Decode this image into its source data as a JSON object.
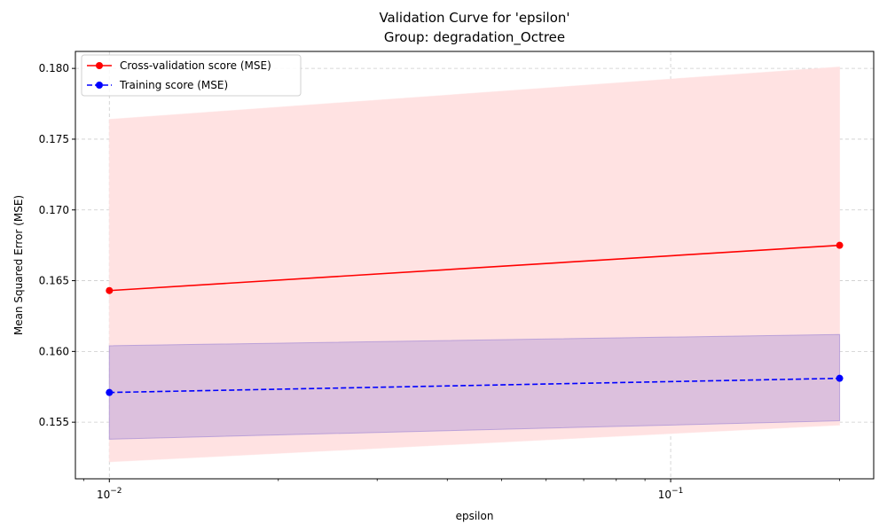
{
  "chart_data": {
    "type": "line",
    "title": "Validation Curve for 'epsilon'",
    "subtitle": "Group: degradation_Octree",
    "xlabel": "epsilon",
    "ylabel": "Mean Squared Error (MSE)",
    "x_scale": "log",
    "xlim": [
      0.0087,
      0.23
    ],
    "ylim": [
      0.151,
      0.1812
    ],
    "x_ticks": [
      {
        "value": 0.01,
        "base": "10",
        "exp": "−2"
      },
      {
        "value": 0.1,
        "base": "10",
        "exp": "−1"
      }
    ],
    "y_ticks": [
      {
        "value": 0.155,
        "label": "0.155"
      },
      {
        "value": 0.16,
        "label": "0.160"
      },
      {
        "value": 0.165,
        "label": "0.165"
      },
      {
        "value": 0.17,
        "label": "0.170"
      },
      {
        "value": 0.175,
        "label": "0.175"
      },
      {
        "value": 0.18,
        "label": "0.180"
      }
    ],
    "grid": true,
    "legend_position": "top-left",
    "series": [
      {
        "name": "Cross-validation score (MSE)",
        "color": "#ff0000",
        "dash": "solid",
        "band_color": "#ffe2e2",
        "x": [
          0.01,
          0.2
        ],
        "y": [
          0.1643,
          0.1675
        ],
        "lower": [
          0.1522,
          0.1548
        ],
        "upper": [
          0.1764,
          0.1801
        ]
      },
      {
        "name": "Training score (MSE)",
        "color": "#0000ff",
        "dash": "dashed",
        "band_color": "#9b82d3",
        "x": [
          0.01,
          0.2
        ],
        "y": [
          0.1571,
          0.1581
        ],
        "lower": [
          0.1538,
          0.1551
        ],
        "upper": [
          0.1604,
          0.1612
        ]
      }
    ]
  }
}
